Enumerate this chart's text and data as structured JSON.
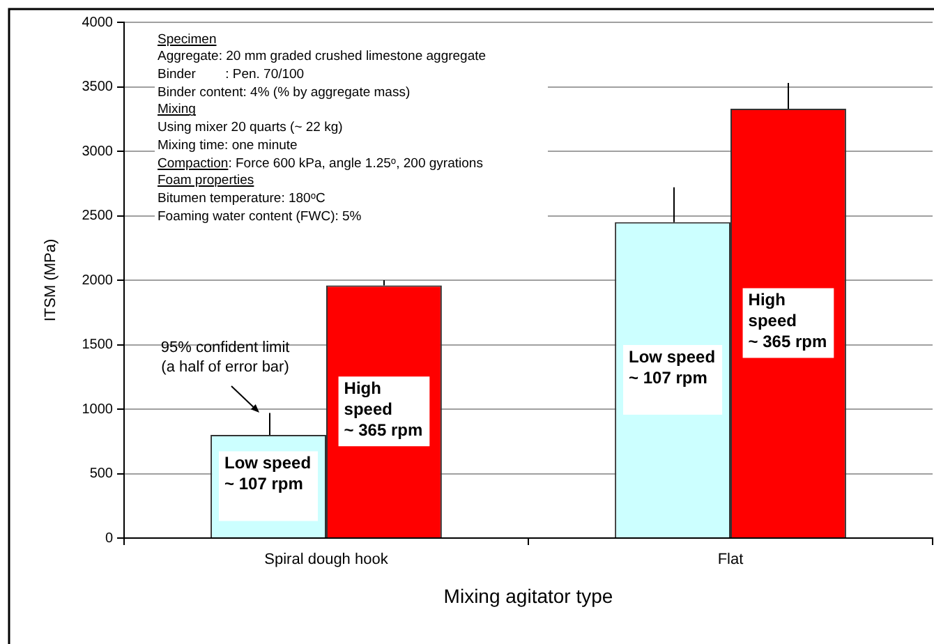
{
  "chart_data": {
    "type": "bar",
    "categories": [
      "Spiral dough hook",
      "Flat"
    ],
    "series": [
      {
        "name": "Low speed ~ 107 rpm",
        "color": "#ccffff",
        "values": [
          800,
          2450
        ],
        "errors": [
          [
            800,
            970
          ],
          [
            2450,
            2720
          ]
        ]
      },
      {
        "name": "High speed ~ 365 rpm",
        "color": "#ff0000",
        "values": [
          1960,
          3330
        ],
        "errors": [
          [
            1960,
            2000
          ],
          [
            3330,
            3530
          ]
        ]
      }
    ],
    "xlabel": "Mixing agitator type",
    "ylabel": "ITSM (MPa)",
    "ylim": [
      0,
      4000
    ],
    "yticks": [
      0,
      500,
      1000,
      1500,
      2000,
      2500,
      3000,
      3500,
      4000
    ],
    "grid": "y",
    "legend": false,
    "annotations": [
      "Specimen",
      "Aggregate: 20 mm graded crushed limestone aggregate",
      "Binder        : Pen. 70/100",
      "Binder content: 4% (% by aggregate mass)",
      "Mixing",
      "Using mixer 20 quarts (~ 22 kg)",
      "Mixing time: one minute",
      "Compaction: Force 600 kPa, angle 1.25$^{o}$, 200 gyrations",
      "Foam properties",
      "Bitumen temperature: 180$^{o}$C",
      "Foaming water content (FWC): 5%",
      "95% confident limit (a half of error bar)"
    ]
  }
}
